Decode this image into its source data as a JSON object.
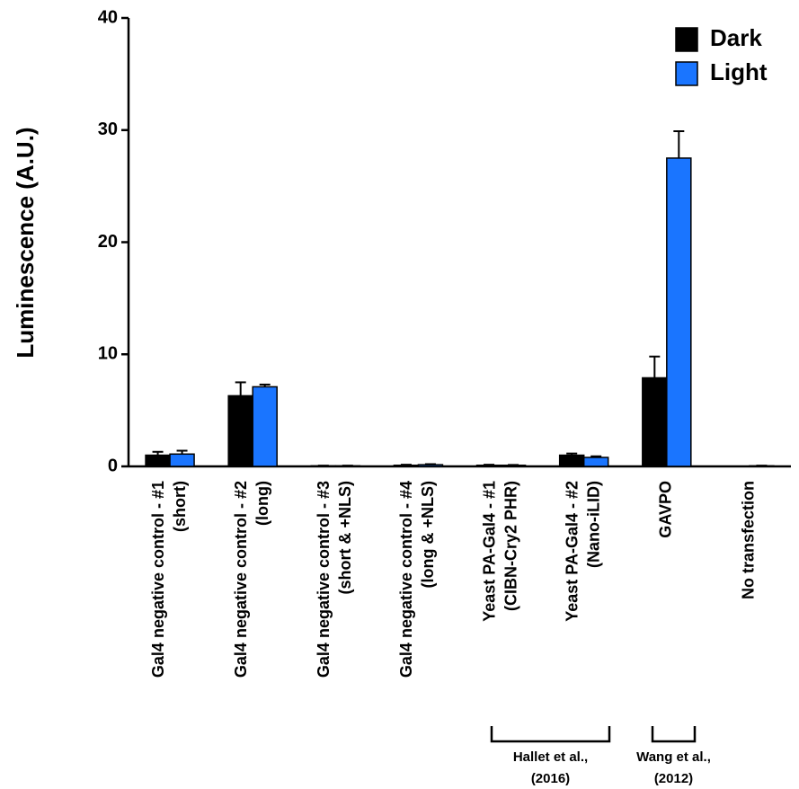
{
  "chart_data": {
    "type": "bar",
    "y_label": "Luminescence (A.U.)",
    "categories": [
      [
        "Gal4 negative control - #1",
        "(short)"
      ],
      [
        "Gal4 negative control - #2",
        "(long)"
      ],
      [
        "Gal4 negative control - #3",
        "(short & +NLS)"
      ],
      [
        "Gal4 negative control - #4",
        "(long & +NLS)"
      ],
      [
        "Yeast PA-Gal4 - #1",
        "(CIBN-Cry2 PHR)"
      ],
      [
        "Yeast PA-Gal4 - #2",
        "(Nano-iLID)"
      ],
      [
        "GAVPO"
      ],
      [
        "No transfection"
      ]
    ],
    "series": [
      {
        "name": "Dark",
        "color": "#000000",
        "values": [
          1.0,
          6.3,
          0.05,
          0.1,
          0.1,
          1.0,
          7.9,
          0
        ],
        "errors": [
          0.3,
          1.2,
          0.02,
          0.05,
          0.05,
          0.15,
          1.9,
          0
        ]
      },
      {
        "name": "Light",
        "color": "#1a75ff",
        "values": [
          1.1,
          7.1,
          0.05,
          0.15,
          0.1,
          0.8,
          27.5,
          0.05
        ],
        "errors": [
          0.3,
          0.2,
          0.02,
          0.05,
          0.03,
          0.1,
          2.4,
          0.02
        ]
      }
    ],
    "ylim": [
      0,
      40
    ],
    "yticks": [
      0,
      10,
      20,
      30,
      40
    ],
    "legend": "top-right",
    "annotations": [
      {
        "text": [
          "Hallet et al.,",
          "(2016)"
        ]
      },
      {
        "text": [
          "Wang et al.,",
          "(2012)"
        ]
      }
    ]
  }
}
